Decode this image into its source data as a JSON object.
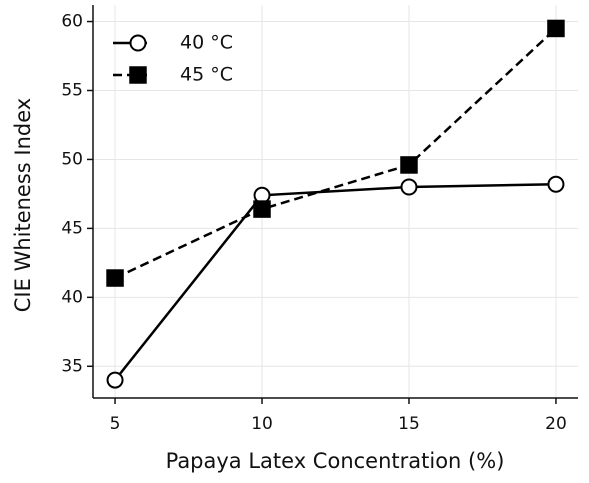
{
  "chart_data": {
    "type": "line",
    "x_label": "Papaya Latex Concentration (%)",
    "y_label": "CIE Whiteness Index",
    "x": [
      5,
      10,
      15,
      20
    ],
    "series": [
      {
        "name": "40 °C",
        "color": "#000000",
        "linestyle": "solid",
        "marker": "circle",
        "values": [
          34.0,
          47.4,
          48.0,
          48.2
        ]
      },
      {
        "name": "45 °C",
        "color": "#000000",
        "linestyle": "dashed",
        "marker": "square",
        "values": [
          41.4,
          46.4,
          49.6,
          59.5
        ]
      }
    ],
    "xlim": [
      4.25,
      20.75
    ],
    "xticks": [
      5,
      10,
      15,
      20
    ],
    "ylim": [
      32.7,
      61.2
    ],
    "yticks": [
      35,
      40,
      45,
      50,
      55,
      60
    ],
    "grid": true,
    "legend": "upper left"
  }
}
